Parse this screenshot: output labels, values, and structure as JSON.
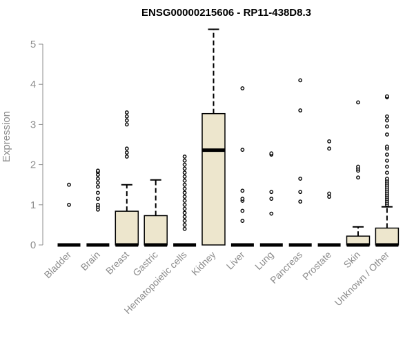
{
  "chart_data": {
    "type": "box",
    "title": "ENSG00000215606 - RP11-438D8.3",
    "xlabel": "",
    "ylabel": "Expression",
    "ylim": [
      0,
      5.4
    ],
    "yticks": [
      0,
      1,
      2,
      3,
      4,
      5
    ],
    "grid": false,
    "colors": {
      "box_fill": "#ede6cd",
      "stroke": "#000000",
      "axis_text": "#8c8c8c"
    },
    "categories": [
      "Bladder",
      "Brain",
      "Breast",
      "Gastric",
      "Hematopoietic cells",
      "Kidney",
      "Liver",
      "Lung",
      "Pancreas",
      "Prostate",
      "Skin",
      "Unknown / Other"
    ],
    "boxes": [
      {
        "category": "Bladder",
        "q1": 0,
        "median": 0,
        "q3": 0,
        "whisker_low": 0,
        "whisker_high": 0,
        "outliers": [
          1.0,
          1.5
        ]
      },
      {
        "category": "Brain",
        "q1": 0,
        "median": 0,
        "q3": 0,
        "whisker_low": 0,
        "whisker_high": 0,
        "outliers": [
          0.88,
          0.95,
          1.0,
          1.15,
          1.3,
          1.45,
          1.55,
          1.65,
          1.75,
          1.82,
          1.85
        ]
      },
      {
        "category": "Breast",
        "q1": 0,
        "median": 0,
        "q3": 0.84,
        "whisker_low": 0,
        "whisker_high": 1.5,
        "outliers": [
          2.2,
          2.3,
          2.4,
          3.0,
          3.1,
          3.2,
          3.3
        ]
      },
      {
        "category": "Gastric",
        "q1": 0,
        "median": 0,
        "q3": 0.73,
        "whisker_low": 0,
        "whisker_high": 1.62,
        "outliers": []
      },
      {
        "category": "Hematopoietic cells",
        "q1": 0,
        "median": 0,
        "q3": 0,
        "whisker_low": 0,
        "whisker_high": 0,
        "outliers": [
          0.4,
          0.5,
          0.6,
          0.7,
          0.8,
          0.9,
          1.0,
          1.1,
          1.2,
          1.3,
          1.4,
          1.5,
          1.6,
          1.7,
          1.8,
          1.9,
          2.0,
          2.1,
          2.2
        ]
      },
      {
        "category": "Kidney",
        "q1": 0,
        "median": 2.36,
        "q3": 3.27,
        "whisker_low": 0,
        "whisker_high": 5.37,
        "outliers": []
      },
      {
        "category": "Liver",
        "q1": 0,
        "median": 0,
        "q3": 0,
        "whisker_low": 0,
        "whisker_high": 0,
        "outliers": [
          0.6,
          0.85,
          1.1,
          1.15,
          1.35,
          2.37,
          3.9
        ]
      },
      {
        "category": "Lung",
        "q1": 0,
        "median": 0,
        "q3": 0,
        "whisker_low": 0,
        "whisker_high": 0,
        "outliers": [
          0.78,
          1.15,
          1.32,
          2.25,
          2.28
        ]
      },
      {
        "category": "Pancreas",
        "q1": 0,
        "median": 0,
        "q3": 0,
        "whisker_low": 0,
        "whisker_high": 0,
        "outliers": [
          1.08,
          1.32,
          1.65,
          3.35,
          4.1
        ]
      },
      {
        "category": "Prostate",
        "q1": 0,
        "median": 0,
        "q3": 0,
        "whisker_low": 0,
        "whisker_high": 0,
        "outliers": [
          1.2,
          1.28,
          2.4,
          2.58
        ]
      },
      {
        "category": "Skin",
        "q1": 0,
        "median": 0,
        "q3": 0.22,
        "whisker_low": 0,
        "whisker_high": 0.45,
        "outliers": [
          1.68,
          1.85,
          1.9,
          1.95,
          3.55
        ]
      },
      {
        "category": "Unknown / Other",
        "q1": 0,
        "median": 0,
        "q3": 0.42,
        "whisker_low": 0,
        "whisker_high": 0.95,
        "outliers": [
          1.0,
          1.05,
          1.1,
          1.15,
          1.2,
          1.25,
          1.3,
          1.35,
          1.4,
          1.45,
          1.5,
          1.55,
          1.6,
          1.65,
          1.8,
          1.95,
          2.1,
          2.25,
          2.4,
          2.45,
          2.75,
          2.95,
          3.1,
          3.2,
          3.68,
          3.7
        ]
      }
    ]
  }
}
